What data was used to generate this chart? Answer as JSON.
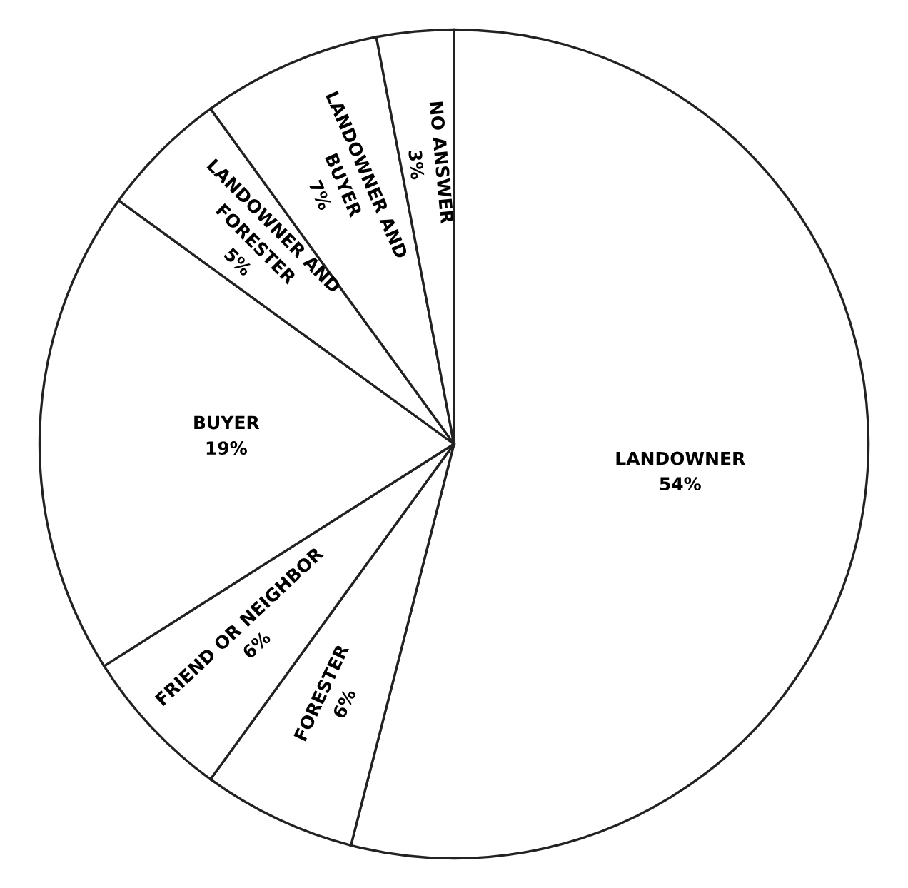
{
  "chart_data": {
    "type": "pie",
    "categories": [
      "LANDOWNER",
      "FORESTER",
      "FRIEND OR NEIGHBOR",
      "BUYER",
      "LANDOWNER AND\nFORESTER",
      "LANDOWNER AND\nBUYER",
      "NO ANSWER"
    ],
    "values": [
      54,
      6,
      6,
      19,
      5,
      7,
      3
    ],
    "value_labels": [
      "54%",
      "6%",
      "6%",
      "19%",
      "5%",
      "7%",
      "3%"
    ],
    "colors": [
      "#ffffff",
      "#ffffff",
      "#ffffff",
      "#ffffff",
      "#ffffff",
      "#ffffff",
      "#ffffff"
    ]
  }
}
